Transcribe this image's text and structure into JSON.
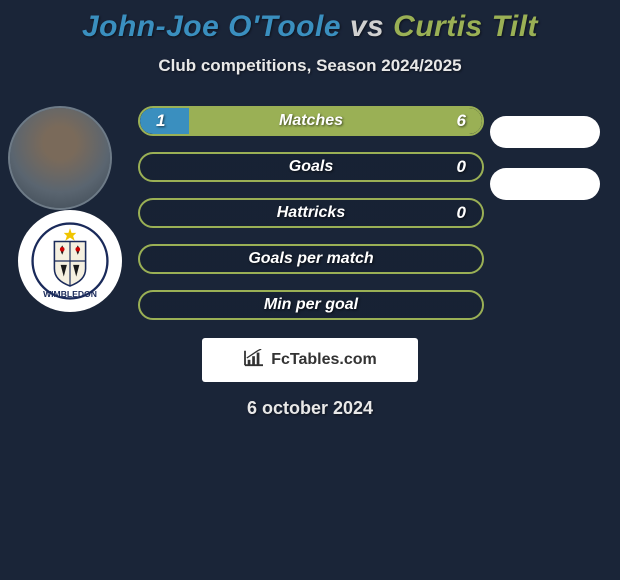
{
  "header": {
    "player1": "John-Joe O'Toole",
    "vs": "vs",
    "player2": "Curtis Tilt"
  },
  "subtitle": "Club competitions, Season 2024/2025",
  "colors": {
    "player1": "#3a8fbf",
    "player2": "#9ab055",
    "background": "#1f2a3a"
  },
  "stats": [
    {
      "label": "Matches",
      "left_value": "1",
      "right_value": "6",
      "left_pct": 14.3,
      "right_pct": 85.7
    },
    {
      "label": "Goals",
      "left_value": "",
      "right_value": "0",
      "left_pct": 0,
      "right_pct": 0
    },
    {
      "label": "Hattricks",
      "left_value": "",
      "right_value": "0",
      "left_pct": 0,
      "right_pct": 0
    },
    {
      "label": "Goals per match",
      "left_value": "",
      "right_value": "",
      "left_pct": 0,
      "right_pct": 0
    },
    {
      "label": "Min per goal",
      "left_value": "",
      "right_value": "",
      "left_pct": 0,
      "right_pct": 0
    }
  ],
  "footer": {
    "brand": "FcTables.com"
  },
  "date": "6 october 2024"
}
